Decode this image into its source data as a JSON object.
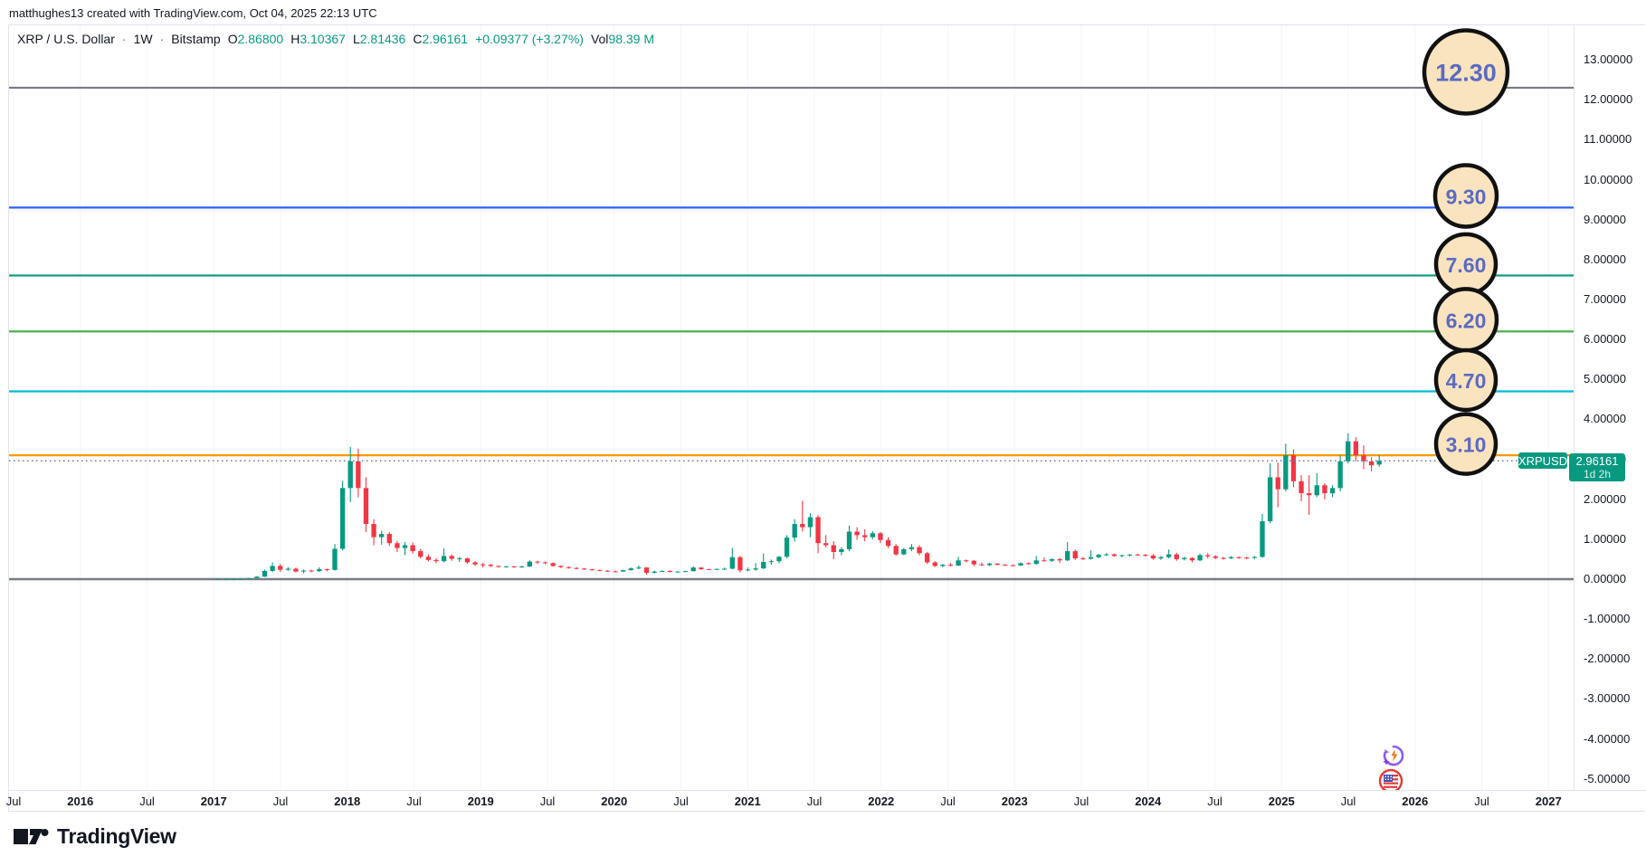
{
  "attribution": {
    "text": "matthughes13 created with TradingView.com, Oct 04, 2025 22:13 UTC"
  },
  "legend": {
    "symbol": "XRP / U.S. Dollar",
    "sep": "·",
    "interval": "1W",
    "exchange": "Bitstamp",
    "ohlc": [
      {
        "label": "O",
        "value": "2.86800"
      },
      {
        "label": "H",
        "value": "3.10367"
      },
      {
        "label": "L",
        "value": "2.81436"
      },
      {
        "label": "C",
        "value": "2.96161"
      }
    ],
    "change": "+0.09377 (+3.27%)",
    "vol_label": "Vol",
    "vol_value": "98.39 M",
    "value_color": "#089981"
  },
  "price_label": {
    "symbol": "XRPUSD",
    "price": "2.96161",
    "countdown": "1d 2h",
    "bg_color": "#089981"
  },
  "y_axis": {
    "ticks": [
      "13.00000",
      "12.00000",
      "11.00000",
      "10.00000",
      "9.00000",
      "8.00000",
      "7.00000",
      "6.00000",
      "5.00000",
      "4.00000",
      "3.00000",
      "2.00000",
      "1.00000",
      "0.00000",
      "-1.00000",
      "-2.00000",
      "-3.00000",
      "-4.00000",
      "-5.00000"
    ]
  },
  "x_axis": {
    "labels": [
      "Jul",
      "2016",
      "Jul",
      "2017",
      "Jul",
      "2018",
      "Jul",
      "2019",
      "Jul",
      "2020",
      "Jul",
      "2021",
      "Jul",
      "2022",
      "Jul",
      "2023",
      "Jul",
      "2024",
      "Jul",
      "2025",
      "Jul",
      "2026",
      "Jul",
      "2027"
    ]
  },
  "footer": {
    "brand": "TradingView"
  },
  "overlay_icons": [
    {
      "name": "ai-spark-refresh-icon"
    },
    {
      "name": "us-flag-icon"
    }
  ],
  "chart_data": {
    "type": "candlestick",
    "symbol": "XRP/USD",
    "interval": "1W",
    "exchange": "Bitstamp",
    "ylim": [
      -5,
      13
    ],
    "x_range": [
      "Jul 2015",
      "2027"
    ],
    "candles_start": "Jan 2017",
    "candles_end": "Oct 04 2025",
    "up_color": "#089981",
    "down_color": "#F23645",
    "last_price": 2.96161,
    "last_price_line": {
      "style": "dotted",
      "color": "#5B7CB0"
    },
    "zero_line": {
      "price": 0.0,
      "color": "#787B86"
    },
    "levels": [
      {
        "price": 12.3,
        "label": "12.30",
        "color": "#787B86",
        "badge": {
          "fill": "#F9E4BF",
          "border": "#111111",
          "text_color": "#5C6BC0",
          "r": 46
        }
      },
      {
        "price": 9.3,
        "label": "9.30",
        "color": "#2962FF",
        "badge": {
          "fill": "#F9E4BF",
          "border": "#111111",
          "text_color": "#5C6BC0",
          "r": 34
        }
      },
      {
        "price": 7.6,
        "label": "7.60",
        "color": "#089981",
        "badge": {
          "fill": "#F9E4BF",
          "border": "#111111",
          "text_color": "#5C6BC0",
          "r": 33
        }
      },
      {
        "price": 6.2,
        "label": "6.20",
        "color": "#4CAF50",
        "badge": {
          "fill": "#F9E4BF",
          "border": "#111111",
          "text_color": "#5C6BC0",
          "r": 34
        }
      },
      {
        "price": 4.7,
        "label": "4.70",
        "color": "#00BCD4",
        "badge": {
          "fill": "#F9E4BF",
          "border": "#111111",
          "text_color": "#5C6BC0",
          "r": 33
        }
      },
      {
        "price": 3.1,
        "label": "3.10",
        "color": "#FF9800",
        "badge": {
          "fill": "#F9E4BF",
          "border": "#111111",
          "text_color": "#5C6BC0",
          "r": 33
        }
      }
    ],
    "candles": [
      [
        0.006,
        0.008,
        0.005,
        0.006
      ],
      [
        0.006,
        0.009,
        0.005,
        0.007
      ],
      [
        0.007,
        0.012,
        0.006,
        0.01
      ],
      [
        0.01,
        0.014,
        0.008,
        0.011
      ],
      [
        0.011,
        0.03,
        0.01,
        0.026
      ],
      [
        0.026,
        0.075,
        0.024,
        0.062
      ],
      [
        0.062,
        0.24,
        0.055,
        0.205
      ],
      [
        0.205,
        0.42,
        0.18,
        0.33
      ],
      [
        0.33,
        0.38,
        0.18,
        0.235
      ],
      [
        0.235,
        0.3,
        0.205,
        0.262
      ],
      [
        0.262,
        0.285,
        0.168,
        0.19
      ],
      [
        0.19,
        0.24,
        0.15,
        0.215
      ],
      [
        0.215,
        0.235,
        0.175,
        0.2
      ],
      [
        0.2,
        0.3,
        0.18,
        0.25
      ],
      [
        0.25,
        0.265,
        0.195,
        0.23
      ],
      [
        0.23,
        0.88,
        0.215,
        0.76
      ],
      [
        0.76,
        2.46,
        0.72,
        2.28
      ],
      [
        2.28,
        3.31,
        1.93,
        2.95
      ],
      [
        2.95,
        3.27,
        2.05,
        2.28
      ],
      [
        2.28,
        2.55,
        1.18,
        1.38
      ],
      [
        1.38,
        1.5,
        0.85,
        1.05
      ],
      [
        1.05,
        1.21,
        0.86,
        1.13
      ],
      [
        1.13,
        1.18,
        0.83,
        0.9
      ],
      [
        0.9,
        0.96,
        0.68,
        0.78
      ],
      [
        0.78,
        0.93,
        0.6,
        0.85
      ],
      [
        0.85,
        0.92,
        0.64,
        0.7
      ],
      [
        0.7,
        0.76,
        0.52,
        0.56
      ],
      [
        0.56,
        0.62,
        0.44,
        0.48
      ],
      [
        0.48,
        0.52,
        0.4,
        0.45
      ],
      [
        0.45,
        0.77,
        0.42,
        0.58
      ],
      [
        0.58,
        0.62,
        0.46,
        0.51
      ],
      [
        0.51,
        0.56,
        0.43,
        0.52
      ],
      [
        0.52,
        0.54,
        0.38,
        0.42
      ],
      [
        0.42,
        0.45,
        0.33,
        0.37
      ],
      [
        0.37,
        0.41,
        0.29,
        0.36
      ],
      [
        0.36,
        0.38,
        0.3,
        0.33
      ],
      [
        0.33,
        0.34,
        0.285,
        0.31
      ],
      [
        0.31,
        0.33,
        0.29,
        0.32
      ],
      [
        0.32,
        0.33,
        0.285,
        0.3
      ],
      [
        0.3,
        0.34,
        0.29,
        0.315
      ],
      [
        0.315,
        0.47,
        0.3,
        0.44
      ],
      [
        0.44,
        0.46,
        0.38,
        0.42
      ],
      [
        0.42,
        0.44,
        0.37,
        0.4
      ],
      [
        0.4,
        0.42,
        0.31,
        0.33
      ],
      [
        0.33,
        0.34,
        0.28,
        0.3
      ],
      [
        0.3,
        0.32,
        0.26,
        0.28
      ],
      [
        0.28,
        0.3,
        0.25,
        0.265
      ],
      [
        0.265,
        0.28,
        0.23,
        0.245
      ],
      [
        0.245,
        0.26,
        0.215,
        0.23
      ],
      [
        0.23,
        0.24,
        0.195,
        0.21
      ],
      [
        0.21,
        0.225,
        0.18,
        0.195
      ],
      [
        0.195,
        0.215,
        0.175,
        0.19
      ],
      [
        0.19,
        0.235,
        0.185,
        0.225
      ],
      [
        0.225,
        0.29,
        0.215,
        0.27
      ],
      [
        0.27,
        0.34,
        0.25,
        0.29
      ],
      [
        0.29,
        0.3,
        0.11,
        0.16
      ],
      [
        0.16,
        0.21,
        0.14,
        0.19
      ],
      [
        0.19,
        0.22,
        0.18,
        0.205
      ],
      [
        0.205,
        0.215,
        0.17,
        0.18
      ],
      [
        0.18,
        0.2,
        0.165,
        0.19
      ],
      [
        0.19,
        0.21,
        0.18,
        0.2
      ],
      [
        0.2,
        0.32,
        0.19,
        0.29
      ],
      [
        0.29,
        0.3,
        0.23,
        0.25
      ],
      [
        0.25,
        0.26,
        0.23,
        0.245
      ],
      [
        0.245,
        0.265,
        0.235,
        0.255
      ],
      [
        0.255,
        0.29,
        0.24,
        0.26
      ],
      [
        0.26,
        0.78,
        0.25,
        0.55
      ],
      [
        0.55,
        0.58,
        0.17,
        0.22
      ],
      [
        0.22,
        0.29,
        0.2,
        0.24
      ],
      [
        0.24,
        0.4,
        0.21,
        0.27
      ],
      [
        0.27,
        0.64,
        0.25,
        0.43
      ],
      [
        0.43,
        0.49,
        0.36,
        0.45
      ],
      [
        0.45,
        0.58,
        0.4,
        0.56
      ],
      [
        0.56,
        1.1,
        0.52,
        1.04
      ],
      [
        1.04,
        1.5,
        0.94,
        1.38
      ],
      [
        1.38,
        1.96,
        1.19,
        1.3
      ],
      [
        1.3,
        1.65,
        1.05,
        1.55
      ],
      [
        1.55,
        1.6,
        0.65,
        0.9
      ],
      [
        0.9,
        1.1,
        0.79,
        0.85
      ],
      [
        0.85,
        0.95,
        0.5,
        0.68
      ],
      [
        0.68,
        0.8,
        0.6,
        0.75
      ],
      [
        0.75,
        1.34,
        0.7,
        1.19
      ],
      [
        1.19,
        1.3,
        0.99,
        1.1
      ],
      [
        1.1,
        1.25,
        0.95,
        1.05
      ],
      [
        1.05,
        1.2,
        1.0,
        1.15
      ],
      [
        1.15,
        1.18,
        0.9,
        0.98
      ],
      [
        0.98,
        1.05,
        0.78,
        0.83
      ],
      [
        0.83,
        0.88,
        0.58,
        0.62
      ],
      [
        0.62,
        0.78,
        0.6,
        0.75
      ],
      [
        0.75,
        0.88,
        0.7,
        0.8
      ],
      [
        0.8,
        0.85,
        0.6,
        0.65
      ],
      [
        0.65,
        0.68,
        0.38,
        0.42
      ],
      [
        0.42,
        0.45,
        0.3,
        0.33
      ],
      [
        0.33,
        0.38,
        0.3,
        0.36
      ],
      [
        0.36,
        0.4,
        0.32,
        0.34
      ],
      [
        0.34,
        0.56,
        0.33,
        0.47
      ],
      [
        0.47,
        0.49,
        0.42,
        0.46
      ],
      [
        0.46,
        0.48,
        0.32,
        0.37
      ],
      [
        0.37,
        0.42,
        0.33,
        0.35
      ],
      [
        0.35,
        0.41,
        0.33,
        0.39
      ],
      [
        0.39,
        0.4,
        0.34,
        0.36
      ],
      [
        0.36,
        0.38,
        0.33,
        0.35
      ],
      [
        0.35,
        0.37,
        0.325,
        0.34
      ],
      [
        0.34,
        0.42,
        0.33,
        0.4
      ],
      [
        0.4,
        0.42,
        0.36,
        0.38
      ],
      [
        0.38,
        0.58,
        0.36,
        0.47
      ],
      [
        0.47,
        0.54,
        0.44,
        0.46
      ],
      [
        0.46,
        0.52,
        0.43,
        0.5
      ],
      [
        0.5,
        0.53,
        0.41,
        0.47
      ],
      [
        0.47,
        0.93,
        0.45,
        0.7
      ],
      [
        0.7,
        0.74,
        0.48,
        0.52
      ],
      [
        0.52,
        0.56,
        0.48,
        0.51
      ],
      [
        0.51,
        0.72,
        0.49,
        0.55
      ],
      [
        0.55,
        0.63,
        0.52,
        0.61
      ],
      [
        0.61,
        0.65,
        0.58,
        0.62
      ],
      [
        0.62,
        0.64,
        0.56,
        0.58
      ],
      [
        0.58,
        0.61,
        0.55,
        0.6
      ],
      [
        0.6,
        0.63,
        0.57,
        0.615
      ],
      [
        0.615,
        0.64,
        0.59,
        0.61
      ],
      [
        0.61,
        0.63,
        0.56,
        0.59
      ],
      [
        0.59,
        0.63,
        0.48,
        0.52
      ],
      [
        0.52,
        0.58,
        0.48,
        0.55
      ],
      [
        0.55,
        0.74,
        0.52,
        0.62
      ],
      [
        0.62,
        0.66,
        0.46,
        0.5
      ],
      [
        0.5,
        0.56,
        0.47,
        0.53
      ],
      [
        0.53,
        0.55,
        0.42,
        0.47
      ],
      [
        0.47,
        0.64,
        0.45,
        0.6
      ],
      [
        0.6,
        0.65,
        0.52,
        0.57
      ],
      [
        0.57,
        0.6,
        0.5,
        0.53
      ],
      [
        0.53,
        0.56,
        0.49,
        0.52
      ],
      [
        0.52,
        0.58,
        0.5,
        0.55
      ],
      [
        0.55,
        0.57,
        0.51,
        0.54
      ],
      [
        0.54,
        0.56,
        0.5,
        0.53
      ],
      [
        0.53,
        0.58,
        0.51,
        0.555
      ],
      [
        0.555,
        1.63,
        0.54,
        1.45
      ],
      [
        1.45,
        2.9,
        1.4,
        2.55
      ],
      [
        2.55,
        2.92,
        1.8,
        2.25
      ],
      [
        2.25,
        3.39,
        2.2,
        3.1
      ],
      [
        3.1,
        3.25,
        2.3,
        2.45
      ],
      [
        2.45,
        2.6,
        1.95,
        2.15
      ],
      [
        2.15,
        2.6,
        1.61,
        2.1
      ],
      [
        2.1,
        2.65,
        2.05,
        2.35
      ],
      [
        2.35,
        2.4,
        2.0,
        2.15
      ],
      [
        2.15,
        2.35,
        2.05,
        2.28
      ],
      [
        2.28,
        3.1,
        2.2,
        2.95
      ],
      [
        2.95,
        3.65,
        2.9,
        3.45
      ],
      [
        3.45,
        3.55,
        2.95,
        3.1
      ],
      [
        3.1,
        3.35,
        2.75,
        2.95
      ],
      [
        2.95,
        3.05,
        2.7,
        2.85
      ],
      [
        2.868,
        3.10367,
        2.81436,
        2.96161
      ]
    ]
  }
}
